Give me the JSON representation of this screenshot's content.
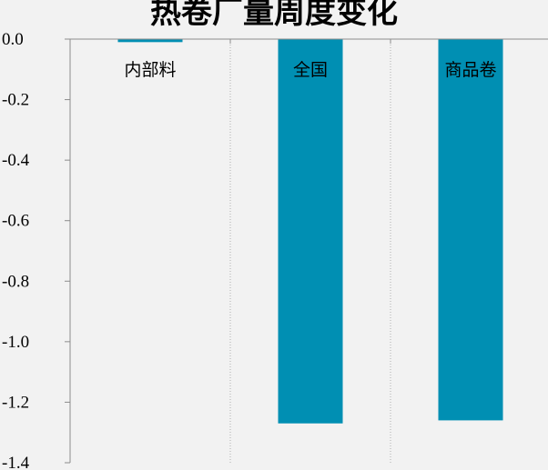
{
  "chart_data": {
    "type": "bar",
    "title": "热卷厂量周度变化",
    "categories": [
      "内部料",
      "全国",
      "商品卷"
    ],
    "values": [
      -0.01,
      -1.27,
      -1.26
    ],
    "ylim": [
      -1.4,
      0.0
    ],
    "yticks": [
      "0.0",
      "-0.2",
      "-0.4",
      "-0.6",
      "-0.8",
      "-1.0",
      "-1.2",
      "-1.4"
    ],
    "xlabel": "",
    "ylabel": "",
    "grid": "vertical-dotted-category-separators",
    "colors": {
      "bar": "#008fb3",
      "axis": "#8c8c8c",
      "background": "#f2f2f2"
    }
  }
}
